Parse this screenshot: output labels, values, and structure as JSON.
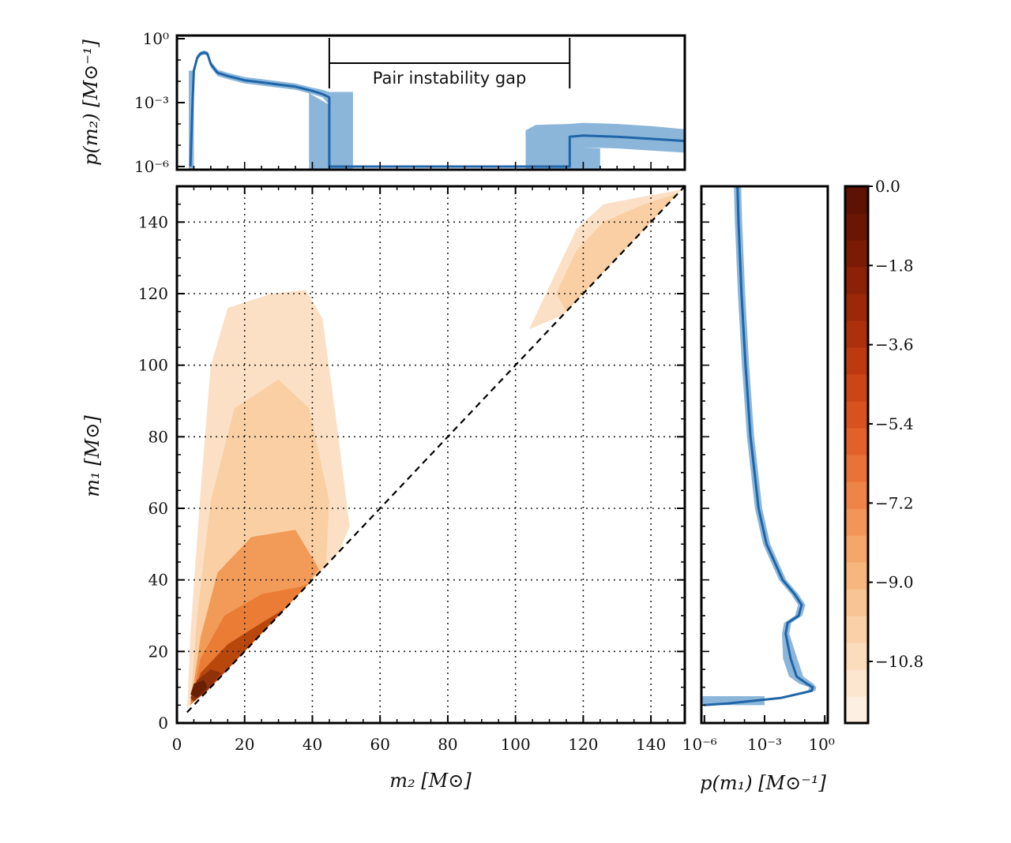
{
  "chart_data": [
    {
      "id": "joint",
      "type": "contour",
      "title": "",
      "xlabel": "m₂ [M⊙]",
      "ylabel": "m₁ [M⊙]",
      "xlim": [
        0,
        150
      ],
      "ylim": [
        0,
        150
      ],
      "x_ticks": [
        "0",
        "20",
        "40",
        "60",
        "80",
        "100",
        "120",
        "140"
      ],
      "y_ticks": [
        "0",
        "20",
        "40",
        "60",
        "80",
        "100",
        "120",
        "140"
      ],
      "grid": true,
      "diagonal": "m1 = m2 (dashed)",
      "colorscale": [
        "#fdf2e6",
        "#fbe0c5",
        "#f9cfa3",
        "#f6b57e",
        "#f29a58",
        "#ea7c35",
        "#d95f1b",
        "#b8470c",
        "#8f3208",
        "#6b2005"
      ],
      "regions": [
        {
          "name": "low-mass-region",
          "level": -10.8,
          "points": [
            [
              3,
              4
            ],
            [
              4,
              25
            ],
            [
              7,
              65
            ],
            [
              10,
              100
            ],
            [
              15,
              116
            ],
            [
              28,
              120
            ],
            [
              38,
              121
            ],
            [
              43,
              113
            ],
            [
              47,
              85
            ],
            [
              51,
              55
            ],
            [
              48,
              48
            ],
            [
              40,
              40
            ],
            [
              20,
              20
            ],
            [
              3,
              4
            ]
          ]
        },
        {
          "name": "low-mass-region",
          "level": -9.0,
          "points": [
            [
              4,
              5
            ],
            [
              6,
              30
            ],
            [
              10,
              62
            ],
            [
              17,
              88
            ],
            [
              30,
              96
            ],
            [
              39,
              88
            ],
            [
              45,
              62
            ],
            [
              44,
              44
            ],
            [
              36,
              36
            ],
            [
              20,
              20
            ],
            [
              4,
              5
            ]
          ]
        },
        {
          "name": "low-mass-region",
          "level": -7.2,
          "points": [
            [
              4,
              5
            ],
            [
              7,
              24
            ],
            [
              12,
              42
            ],
            [
              22,
              52
            ],
            [
              35,
              54
            ],
            [
              42,
              43
            ],
            [
              36,
              36
            ],
            [
              20,
              20
            ],
            [
              4,
              5
            ]
          ]
        },
        {
          "name": "low-mass-region",
          "level": -5.4,
          "points": [
            [
              4,
              5
            ],
            [
              7,
              18
            ],
            [
              14,
              30
            ],
            [
              25,
              36
            ],
            [
              36,
              38
            ],
            [
              39,
              39
            ],
            [
              26,
              26
            ],
            [
              12,
              12
            ],
            [
              4,
              5
            ]
          ]
        },
        {
          "name": "low-mass-region",
          "level": -3.6,
          "points": [
            [
              4,
              6
            ],
            [
              7,
              14
            ],
            [
              15,
              22
            ],
            [
              25,
              28
            ],
            [
              32,
              32
            ],
            [
              20,
              20
            ],
            [
              10,
              10
            ],
            [
              4,
              6
            ]
          ]
        },
        {
          "name": "low-mass-region",
          "level": -1.8,
          "points": [
            [
              4,
              7
            ],
            [
              6,
              12
            ],
            [
              10,
              15
            ],
            [
              13,
              14
            ],
            [
              9,
              9
            ],
            [
              5,
              6
            ],
            [
              4,
              7
            ]
          ]
        },
        {
          "name": "low-mass-region",
          "level": 0.0,
          "points": [
            [
              4,
              8
            ],
            [
              5,
              11
            ],
            [
              8,
              12
            ],
            [
              9,
              10
            ],
            [
              6,
              7
            ],
            [
              4,
              8
            ]
          ]
        },
        {
          "name": "high-mass-region",
          "level": -10.8,
          "points": [
            [
              104,
              110
            ],
            [
              112,
              126
            ],
            [
              118,
              138
            ],
            [
              126,
              145
            ],
            [
              140,
              147.5
            ],
            [
              149,
              149
            ],
            [
              130,
              130
            ],
            [
              114,
              114
            ],
            [
              104,
              110
            ]
          ]
        },
        {
          "name": "high-mass-region",
          "level": -9.0,
          "points": [
            [
              112,
              120
            ],
            [
              118,
              132
            ],
            [
              126,
              140
            ],
            [
              138,
              145
            ],
            [
              148,
              148
            ],
            [
              130,
              130
            ],
            [
              115,
              115
            ],
            [
              112,
              120
            ]
          ]
        }
      ]
    },
    {
      "id": "marginal_m2",
      "type": "line",
      "ylabel": "p(m₂) [M⊙⁻¹]",
      "xlim": [
        0,
        150
      ],
      "ylim_log10": [
        -6,
        0
      ],
      "y_ticks": [
        "10⁰",
        "10⁻³",
        "10⁻⁶"
      ],
      "x": [
        4,
        4.5,
        5,
        6,
        7,
        8,
        9,
        10,
        12,
        15,
        20,
        25,
        30,
        35,
        40,
        43,
        45,
        45,
        116,
        116,
        120,
        130,
        140,
        150
      ],
      "log10_y": [
        -6,
        -3.5,
        -1.5,
        -0.9,
        -0.7,
        -0.65,
        -0.7,
        -1.2,
        -1.6,
        -1.75,
        -1.95,
        -2.05,
        -2.15,
        -2.25,
        -2.45,
        -2.6,
        -2.75,
        -6,
        -6,
        -4.6,
        -4.55,
        -4.6,
        -4.7,
        -4.8
      ],
      "band_upper": [
        -6,
        -3.2,
        -1.3,
        -0.75,
        -0.6,
        -0.55,
        -0.6,
        -1.05,
        -1.45,
        -1.6,
        -1.8,
        -1.9,
        -2.0,
        -2.1,
        -2.3,
        -2.4,
        -2.5,
        -2.5,
        -4.0,
        -4.0,
        -3.95,
        -4.0,
        -4.1,
        -4.25
      ],
      "band_lower": [
        -6,
        -3.9,
        -1.7,
        -1.0,
        -0.8,
        -0.75,
        -0.8,
        -1.35,
        -1.75,
        -1.9,
        -2.1,
        -2.2,
        -2.3,
        -2.4,
        -2.6,
        -2.75,
        -3.1,
        -6,
        -6,
        -5.2,
        -5.1,
        -5.15,
        -5.25,
        -5.35
      ],
      "gap_band": {
        "left_mass": 39,
        "right_mass": 52,
        "right_hi_mass": 103,
        "hi_end_mass": 125
      },
      "annotation": {
        "text": "Pair instability gap",
        "from": 45,
        "to": 116
      }
    },
    {
      "id": "marginal_m1",
      "type": "line",
      "xlabel": "p(m₁) [M⊙⁻¹]",
      "xlim_log10": [
        -6,
        0
      ],
      "x_ticks": [
        "10⁻⁶",
        "10⁻³",
        "10⁰"
      ],
      "m1": [
        5,
        5.5,
        7,
        9,
        10,
        11,
        13,
        18,
        25,
        28,
        30,
        33,
        36,
        40,
        50,
        60,
        80,
        100,
        120,
        140,
        150
      ],
      "log10_p": [
        -6,
        -4.8,
        -2.2,
        -0.65,
        -0.6,
        -0.9,
        -1.4,
        -1.7,
        -1.95,
        -1.85,
        -1.3,
        -1.15,
        -1.5,
        -2.1,
        -2.9,
        -3.3,
        -3.7,
        -3.95,
        -4.15,
        -4.3,
        -4.35
      ],
      "band_width": 0.18
    }
  ],
  "colorbar": {
    "labels": [
      "0.0",
      "−1.8",
      "−3.6",
      "−5.4",
      "−7.2",
      "−9.0",
      "−10.8"
    ],
    "values": [
      0.0,
      -1.8,
      -3.6,
      -5.4,
      -7.2,
      -9.0,
      -10.8
    ],
    "range": [
      -12.2,
      0.0
    ],
    "colors": [
      "#fdf0e2",
      "#fce6d0",
      "#fbdcbd",
      "#fad0a8",
      "#f9c493",
      "#f7b67e",
      "#f5a66a",
      "#f29558",
      "#ee8447",
      "#e97237",
      "#e2612a",
      "#d8521f",
      "#cc4517",
      "#bd3a11",
      "#ad300d",
      "#9c280a",
      "#8c2107",
      "#7b1b05",
      "#6b1604",
      "#5e1203"
    ]
  },
  "labels": {
    "x_joint": "m₂ [M⊙]",
    "y_joint": "m₁ [M⊙]",
    "y_top": "p(m₂) [M⊙⁻¹]",
    "x_right": "p(m₁) [M⊙⁻¹]",
    "gap_text": "Pair instability gap"
  }
}
